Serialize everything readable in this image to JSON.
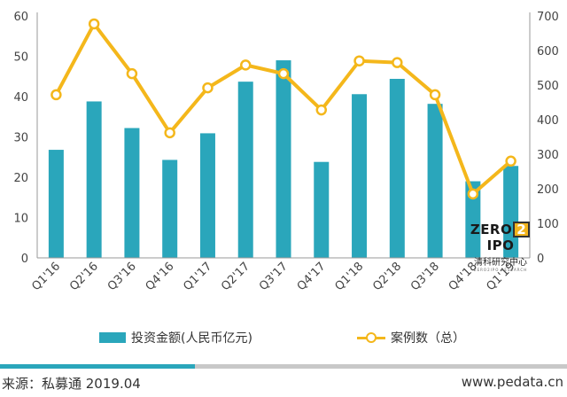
{
  "chart_data": {
    "type": "bar+line",
    "categories": [
      "Q1'16",
      "Q2'16",
      "Q3'16",
      "Q4'16",
      "Q1'17",
      "Q2'17",
      "Q3'17",
      "Q4'17",
      "Q1'18",
      "Q2'18",
      "Q3'18",
      "Q4'18",
      "Q1'19"
    ],
    "series": [
      {
        "name": "投资金额(人民币亿元)",
        "type": "bar",
        "axis": "left",
        "values": [
          26.8,
          38.8,
          32.2,
          24.3,
          30.9,
          43.7,
          49.0,
          23.8,
          40.6,
          44.4,
          38.2,
          19.0,
          22.8
        ]
      },
      {
        "name": "案例数（总）",
        "type": "line",
        "axis": "right",
        "values": [
          472,
          677,
          533,
          362,
          492,
          558,
          533,
          428,
          570,
          565,
          472,
          185,
          280
        ]
      }
    ],
    "y_left": {
      "min": 0,
      "max": 60,
      "ticks": [
        0,
        10,
        20,
        30,
        40,
        50,
        60
      ]
    },
    "y_right": {
      "min": 0,
      "max": 700,
      "ticks": [
        0,
        100,
        200,
        300,
        400,
        500,
        600,
        700
      ]
    },
    "grid": false,
    "legend_position": "bottom"
  },
  "colors": {
    "bar": "#2aa6bb",
    "line": "#f4b71b",
    "marker_fill": "#ffffff",
    "footer_accent": "#2aa6bb",
    "footer_rest": "#c8c8c8",
    "axis": "#999999"
  },
  "watermark": {
    "logo_left": "ZERO",
    "logo_mid": "2",
    "logo_right": "IPO",
    "subtitle": "清科研究中心",
    "tiny": "ZERO2IPO RESEARCH"
  },
  "footer": {
    "source": "来源：私募通 2019.04",
    "site": "www.pedata.cn"
  }
}
